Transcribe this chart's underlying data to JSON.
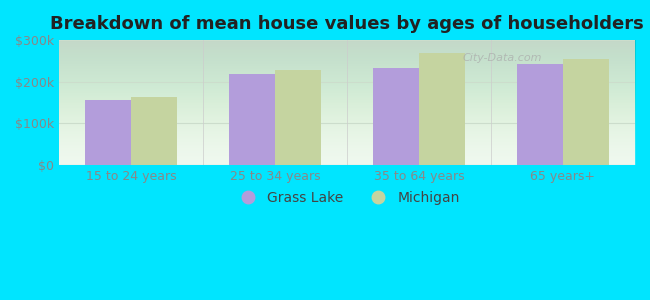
{
  "title": "Breakdown of mean house values by ages of householders",
  "categories": [
    "15 to 24 years",
    "25 to 34 years",
    "35 to 64 years",
    "65 years+"
  ],
  "grass_lake_values": [
    155000,
    218000,
    232000,
    242000
  ],
  "michigan_values": [
    163000,
    228000,
    268000,
    255000
  ],
  "bar_color_grass_lake": "#b39ddb",
  "bar_color_michigan": "#c5d4a0",
  "background_color": "#00e5ff",
  "ylim": [
    0,
    300000
  ],
  "yticks": [
    0,
    100000,
    200000,
    300000
  ],
  "ytick_labels": [
    "$0",
    "$100k",
    "$200k",
    "$300k"
  ],
  "legend_labels": [
    "Grass Lake",
    "Michigan"
  ],
  "bar_width": 0.32,
  "title_fontsize": 13,
  "tick_fontsize": 9,
  "legend_fontsize": 10,
  "watermark_text": "City-Data.com",
  "grid_color": "#ccddcc",
  "plot_bg_top": "#dbeedd",
  "plot_bg_bottom": "#eef8ee"
}
